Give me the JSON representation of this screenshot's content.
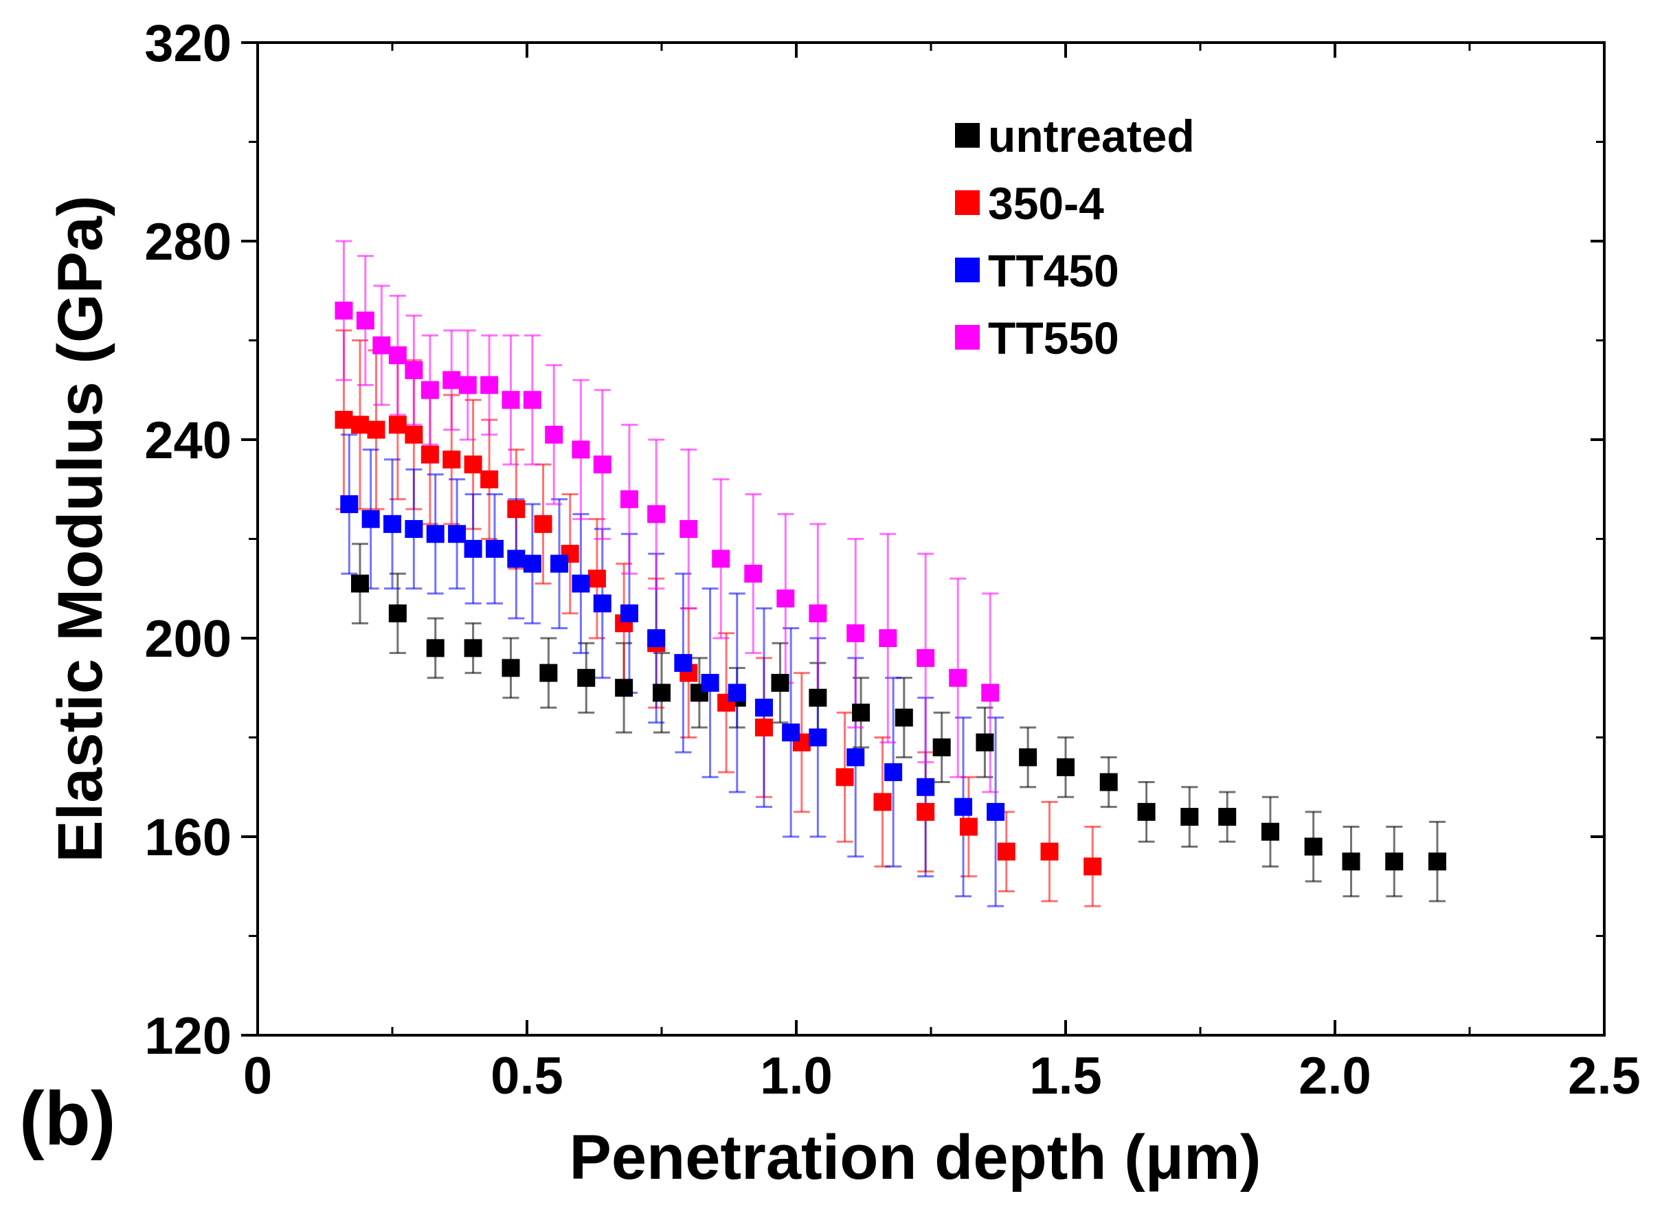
{
  "panel_label": "(b)",
  "chart_data": {
    "type": "scatter",
    "xlabel": "Penetration depth (μm)",
    "ylabel": "Elastic Modulus (GPa)",
    "xlim": [
      0,
      2.5
    ],
    "ylim": [
      120,
      320
    ],
    "x_ticks": [
      0,
      0.5,
      1.0,
      1.5,
      2.0,
      2.5
    ],
    "x_tick_labels": [
      "0",
      "0.5",
      "1.0",
      "1.5",
      "2.0",
      "2.5"
    ],
    "y_ticks": [
      120,
      160,
      200,
      240,
      280,
      320
    ],
    "y_tick_labels": [
      "120",
      "160",
      "200",
      "240",
      "280",
      "320"
    ],
    "legend_position": "top-right",
    "grid": false,
    "series": [
      {
        "name": "untreated",
        "color": "#000000",
        "marker": "square",
        "points": [
          {
            "x": 0.19,
            "y": 211,
            "err": 8
          },
          {
            "x": 0.26,
            "y": 205,
            "err": 8
          },
          {
            "x": 0.33,
            "y": 198,
            "err": 6
          },
          {
            "x": 0.4,
            "y": 198,
            "err": 5
          },
          {
            "x": 0.47,
            "y": 194,
            "err": 6
          },
          {
            "x": 0.54,
            "y": 193,
            "err": 7
          },
          {
            "x": 0.61,
            "y": 192,
            "err": 7
          },
          {
            "x": 0.68,
            "y": 190,
            "err": 9
          },
          {
            "x": 0.75,
            "y": 189,
            "err": 8
          },
          {
            "x": 0.82,
            "y": 189,
            "err": 7
          },
          {
            "x": 0.89,
            "y": 188,
            "err": 6
          },
          {
            "x": 0.97,
            "y": 191,
            "err": 8
          },
          {
            "x": 1.04,
            "y": 188,
            "err": 7
          },
          {
            "x": 1.12,
            "y": 185,
            "err": 7
          },
          {
            "x": 1.2,
            "y": 184,
            "err": 8
          },
          {
            "x": 1.27,
            "y": 178,
            "err": 7
          },
          {
            "x": 1.35,
            "y": 179,
            "err": 7
          },
          {
            "x": 1.43,
            "y": 176,
            "err": 6
          },
          {
            "x": 1.5,
            "y": 174,
            "err": 6
          },
          {
            "x": 1.58,
            "y": 171,
            "err": 5
          },
          {
            "x": 1.65,
            "y": 165,
            "err": 6
          },
          {
            "x": 1.73,
            "y": 164,
            "err": 6
          },
          {
            "x": 1.8,
            "y": 164,
            "err": 5
          },
          {
            "x": 1.88,
            "y": 161,
            "err": 7
          },
          {
            "x": 1.96,
            "y": 158,
            "err": 7
          },
          {
            "x": 2.03,
            "y": 155,
            "err": 7
          },
          {
            "x": 2.11,
            "y": 155,
            "err": 7
          },
          {
            "x": 2.19,
            "y": 155,
            "err": 8
          }
        ]
      },
      {
        "name": "350-4",
        "color": "#ff0000",
        "marker": "square",
        "points": [
          {
            "x": 0.16,
            "y": 244,
            "err": 18
          },
          {
            "x": 0.19,
            "y": 243,
            "err": 17
          },
          {
            "x": 0.22,
            "y": 242,
            "err": 16
          },
          {
            "x": 0.26,
            "y": 243,
            "err": 15
          },
          {
            "x": 0.29,
            "y": 241,
            "err": 15
          },
          {
            "x": 0.32,
            "y": 237,
            "err": 14
          },
          {
            "x": 0.36,
            "y": 236,
            "err": 13
          },
          {
            "x": 0.4,
            "y": 235,
            "err": 13
          },
          {
            "x": 0.43,
            "y": 232,
            "err": 12
          },
          {
            "x": 0.48,
            "y": 226,
            "err": 12
          },
          {
            "x": 0.53,
            "y": 223,
            "err": 12
          },
          {
            "x": 0.58,
            "y": 217,
            "err": 12
          },
          {
            "x": 0.63,
            "y": 212,
            "err": 12
          },
          {
            "x": 0.68,
            "y": 203,
            "err": 12
          },
          {
            "x": 0.74,
            "y": 199,
            "err": 13
          },
          {
            "x": 0.8,
            "y": 193,
            "err": 13
          },
          {
            "x": 0.87,
            "y": 187,
            "err": 14
          },
          {
            "x": 0.94,
            "y": 182,
            "err": 14
          },
          {
            "x": 1.01,
            "y": 179,
            "err": 14
          },
          {
            "x": 1.09,
            "y": 172,
            "err": 13
          },
          {
            "x": 1.16,
            "y": 167,
            "err": 13
          },
          {
            "x": 1.24,
            "y": 165,
            "err": 12
          },
          {
            "x": 1.32,
            "y": 162,
            "err": 10
          },
          {
            "x": 1.39,
            "y": 157,
            "err": 8
          },
          {
            "x": 1.47,
            "y": 157,
            "err": 10
          },
          {
            "x": 1.55,
            "y": 154,
            "err": 8
          }
        ]
      },
      {
        "name": "TT450",
        "color": "#0000ff",
        "marker": "square",
        "points": [
          {
            "x": 0.17,
            "y": 227,
            "err": 14
          },
          {
            "x": 0.21,
            "y": 224,
            "err": 14
          },
          {
            "x": 0.25,
            "y": 223,
            "err": 13
          },
          {
            "x": 0.29,
            "y": 222,
            "err": 12
          },
          {
            "x": 0.33,
            "y": 221,
            "err": 12
          },
          {
            "x": 0.37,
            "y": 221,
            "err": 11
          },
          {
            "x": 0.4,
            "y": 218,
            "err": 11
          },
          {
            "x": 0.44,
            "y": 218,
            "err": 11
          },
          {
            "x": 0.48,
            "y": 216,
            "err": 12
          },
          {
            "x": 0.51,
            "y": 215,
            "err": 12
          },
          {
            "x": 0.56,
            "y": 215,
            "err": 13
          },
          {
            "x": 0.6,
            "y": 211,
            "err": 14
          },
          {
            "x": 0.64,
            "y": 207,
            "err": 15
          },
          {
            "x": 0.69,
            "y": 205,
            "err": 16
          },
          {
            "x": 0.74,
            "y": 200,
            "err": 17
          },
          {
            "x": 0.79,
            "y": 195,
            "err": 18
          },
          {
            "x": 0.84,
            "y": 191,
            "err": 19
          },
          {
            "x": 0.89,
            "y": 189,
            "err": 20
          },
          {
            "x": 0.94,
            "y": 186,
            "err": 20
          },
          {
            "x": 0.99,
            "y": 181,
            "err": 21
          },
          {
            "x": 1.04,
            "y": 180,
            "err": 20
          },
          {
            "x": 1.11,
            "y": 176,
            "err": 20
          },
          {
            "x": 1.18,
            "y": 173,
            "err": 19
          },
          {
            "x": 1.24,
            "y": 170,
            "err": 18
          },
          {
            "x": 1.31,
            "y": 166,
            "err": 18
          },
          {
            "x": 1.37,
            "y": 165,
            "err": 19
          }
        ]
      },
      {
        "name": "TT550",
        "color": "#ff00ff",
        "marker": "square",
        "points": [
          {
            "x": 0.16,
            "y": 266,
            "err": 14
          },
          {
            "x": 0.2,
            "y": 264,
            "err": 13
          },
          {
            "x": 0.23,
            "y": 259,
            "err": 12
          },
          {
            "x": 0.26,
            "y": 257,
            "err": 12
          },
          {
            "x": 0.29,
            "y": 254,
            "err": 11
          },
          {
            "x": 0.32,
            "y": 250,
            "err": 11
          },
          {
            "x": 0.36,
            "y": 252,
            "err": 10
          },
          {
            "x": 0.39,
            "y": 251,
            "err": 11
          },
          {
            "x": 0.43,
            "y": 251,
            "err": 10
          },
          {
            "x": 0.47,
            "y": 248,
            "err": 13
          },
          {
            "x": 0.51,
            "y": 248,
            "err": 13
          },
          {
            "x": 0.55,
            "y": 241,
            "err": 14
          },
          {
            "x": 0.6,
            "y": 238,
            "err": 14
          },
          {
            "x": 0.64,
            "y": 235,
            "err": 15
          },
          {
            "x": 0.69,
            "y": 228,
            "err": 15
          },
          {
            "x": 0.74,
            "y": 225,
            "err": 15
          },
          {
            "x": 0.8,
            "y": 222,
            "err": 16
          },
          {
            "x": 0.86,
            "y": 216,
            "err": 16
          },
          {
            "x": 0.92,
            "y": 213,
            "err": 16
          },
          {
            "x": 0.98,
            "y": 208,
            "err": 17
          },
          {
            "x": 1.04,
            "y": 205,
            "err": 18
          },
          {
            "x": 1.11,
            "y": 201,
            "err": 19
          },
          {
            "x": 1.17,
            "y": 200,
            "err": 21
          },
          {
            "x": 1.24,
            "y": 196,
            "err": 21
          },
          {
            "x": 1.3,
            "y": 192,
            "err": 20
          },
          {
            "x": 1.36,
            "y": 189,
            "err": 20
          }
        ]
      }
    ]
  }
}
